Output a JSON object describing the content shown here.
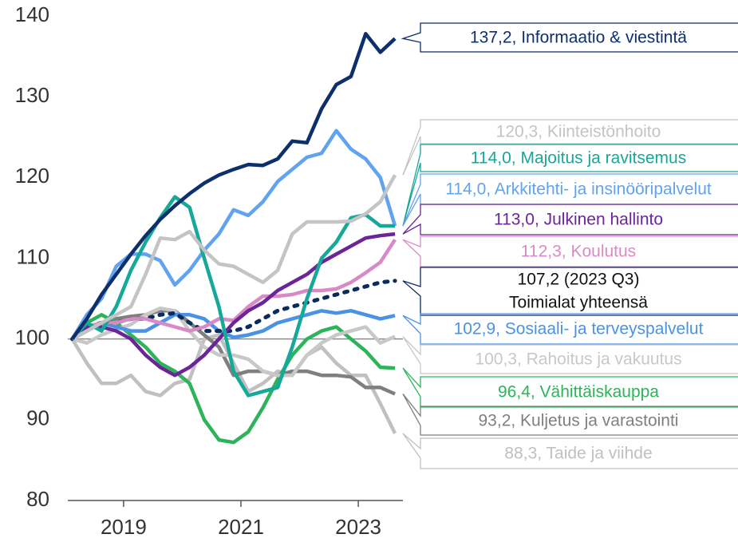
{
  "chart_data": {
    "type": "line",
    "x": [
      2018.125,
      2018.375,
      2018.625,
      2018.875,
      2019.125,
      2019.375,
      2019.625,
      2019.875,
      2020.125,
      2020.375,
      2020.625,
      2020.875,
      2021.125,
      2021.375,
      2021.625,
      2021.875,
      2022.125,
      2022.375,
      2022.625,
      2022.875,
      2023.125,
      2023.375,
      2023.625
    ],
    "xlim": [
      2018.05,
      2023.76
    ],
    "xticks": [
      2019,
      2021,
      2023
    ],
    "ylim": [
      80,
      140
    ],
    "yticks": [
      80,
      90,
      100,
      110,
      120,
      130,
      140
    ],
    "baseline": 100,
    "grid": false,
    "series": [
      {
        "name": "137,2, Informaatio & viestintä",
        "color": "#0d2f6b",
        "values": [
          100,
          102.5,
          105.5,
          108,
          110.5,
          112.8,
          114.8,
          116.5,
          118,
          119.3,
          120.3,
          121,
          121.6,
          121.5,
          122.3,
          124.5,
          124.3,
          128.5,
          131.5,
          132.5,
          137.8,
          135.5,
          137.2
        ]
      },
      {
        "name": "120,3, Kiinteistönhoito",
        "color": "#c4c4c4",
        "values": [
          100,
          101,
          102,
          103,
          104,
          108,
          112.5,
          112.3,
          113.3,
          111,
          109.3,
          109,
          108,
          107,
          108.5,
          113,
          114.5,
          114.5,
          114.5,
          114.6,
          115.5,
          117,
          120.3
        ]
      },
      {
        "name": "114,0, Majoitus ja ravitsemus",
        "color": "#16a898",
        "values": [
          100,
          102,
          101,
          104,
          108.5,
          112,
          115,
          117.6,
          116.3,
          110,
          104,
          96,
          93,
          93.5,
          94,
          99,
          105,
          110,
          112,
          115,
          115.4,
          114,
          114
        ]
      },
      {
        "name": "114,0, Arkkitehti- ja insinööripalvelut",
        "color": "#62a3ef",
        "values": [
          100,
          103,
          105,
          109,
          110.5,
          110.5,
          109.7,
          106.7,
          108.5,
          111,
          113,
          116,
          115.3,
          117,
          119.5,
          121,
          122.5,
          123,
          125.8,
          123.5,
          122.3,
          120,
          114
        ]
      },
      {
        "name": "113,0, Julkinen hallinto",
        "color": "#6b2598",
        "values": [
          100,
          101.5,
          101.5,
          101,
          100,
          98,
          96.5,
          95.5,
          96.5,
          98,
          100,
          102,
          103.5,
          104.5,
          106,
          107,
          108,
          109.5,
          110.5,
          111.5,
          112.5,
          112.8,
          113
        ]
      },
      {
        "name": "112,3, Koulutus",
        "color": "#d98ac6",
        "values": [
          100,
          101.5,
          102,
          102,
          102.5,
          102.5,
          102,
          101.5,
          101,
          101.5,
          102.5,
          102.3,
          104,
          105.3,
          105.3,
          105.5,
          106,
          106,
          106.2,
          107,
          108.2,
          109.5,
          112.3
        ]
      },
      {
        "name": "Toimialat yhteensä",
        "annotation": "107,2 (2023 Q3)",
        "color": "#0b2a5e",
        "dash": true,
        "values": [
          100,
          101.5,
          102,
          102,
          102.5,
          102.5,
          103,
          103.2,
          102,
          101,
          101,
          101,
          101.5,
          102.5,
          103.5,
          104,
          104.5,
          105,
          105.5,
          106,
          106.5,
          107,
          107.2
        ]
      },
      {
        "name": "102,9, Sosiaali- ja terveyspalvelut",
        "color": "#4a92e6",
        "values": [
          100,
          101,
          102,
          101.5,
          101,
          101,
          102,
          103,
          103,
          102.5,
          101,
          100.2,
          100.5,
          101,
          102,
          102.5,
          103,
          103.5,
          103.2,
          103.5,
          103,
          102.5,
          102.9
        ]
      },
      {
        "name": "100,3, Rahoitus ja vakuutus",
        "color": "#c8c8c8",
        "values": [
          100,
          99.5,
          100.5,
          101.2,
          101.8,
          103,
          103.8,
          103.5,
          101,
          99,
          98,
          98,
          97.5,
          96,
          95.5,
          95.5,
          98,
          99.5,
          100.5,
          101,
          101.5,
          99.5,
          100.3
        ]
      },
      {
        "name": "96,4, Vähittäiskauppa",
        "color": "#2db45a",
        "values": [
          100,
          102,
          103,
          102,
          100.5,
          99,
          97,
          96,
          94.5,
          90,
          87.5,
          87.2,
          88.5,
          91.5,
          95,
          98,
          100,
          101,
          101.5,
          100,
          98.5,
          96.5,
          96.4
        ]
      },
      {
        "name": "93,2, Kuljetus ja varastointi",
        "color": "#7f7f7f",
        "values": [
          100,
          101,
          102,
          102.5,
          102.8,
          103,
          103.5,
          103.5,
          102,
          100.5,
          99,
          95.5,
          96,
          96,
          95.5,
          96,
          96,
          95.5,
          95.5,
          95.3,
          94,
          94,
          93.2
        ]
      },
      {
        "name": "88,3, Taide ja viihde",
        "color": "#c0c0c0",
        "values": [
          100,
          97,
          94.5,
          94.5,
          95.5,
          93.5,
          93,
          94.5,
          95,
          100,
          100.5,
          97,
          93.5,
          94.5,
          96,
          95.5,
          98,
          99,
          97,
          95.5,
          95.5,
          92,
          88.3
        ]
      }
    ]
  }
}
